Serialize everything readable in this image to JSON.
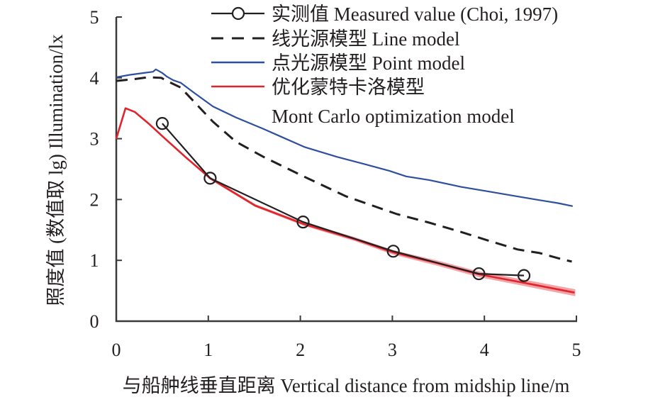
{
  "chart_data": {
    "type": "line",
    "title": "",
    "xlabel": "与船舯线垂直距离 Vertical distance from midship line/m",
    "ylabel": "照度值 (数值取 lg) Illumination/lx",
    "xlim": [
      0,
      5
    ],
    "ylim": [
      0,
      5
    ],
    "xticks": [
      "0",
      "1",
      "2",
      "3",
      "4",
      "5"
    ],
    "yticks": [
      "0",
      "1",
      "2",
      "3",
      "4",
      "5"
    ],
    "grid": false,
    "legend_position": "top-right",
    "series": [
      {
        "name": "实测值 Measured value (Choi, 1997)",
        "style": "solid-circle-markers",
        "color": "#231f20",
        "x": [
          0.5,
          1.02,
          2.03,
          3.01,
          3.94,
          4.43
        ],
        "y": [
          3.25,
          2.35,
          1.63,
          1.15,
          0.78,
          0.75
        ]
      },
      {
        "name": "线光源模型  Line model",
        "style": "dashed",
        "color": "#231f20",
        "x": [
          0.0,
          0.2,
          0.35,
          0.49,
          0.55,
          0.7,
          0.85,
          1.05,
          1.3,
          1.6,
          2.05,
          2.5,
          3.05,
          3.4,
          3.74,
          4.05,
          4.36,
          4.6,
          4.86,
          4.95
        ],
        "y": [
          3.95,
          3.98,
          4.01,
          4.0,
          3.95,
          3.84,
          3.6,
          3.28,
          2.95,
          2.7,
          2.37,
          2.05,
          1.76,
          1.62,
          1.47,
          1.32,
          1.18,
          1.12,
          1.01,
          0.98
        ]
      },
      {
        "name": "点光源模型 Point model",
        "style": "solid",
        "color": "#2e4f9e",
        "x": [
          0.0,
          0.15,
          0.3,
          0.4,
          0.43,
          0.5,
          0.55,
          0.62,
          0.7,
          0.85,
          1.05,
          1.3,
          1.6,
          2.05,
          2.4,
          2.7,
          2.97,
          3.15,
          3.4,
          3.74,
          4.05,
          4.36,
          4.6,
          4.8,
          4.96
        ],
        "y": [
          4.01,
          4.05,
          4.08,
          4.1,
          4.14,
          4.08,
          4.02,
          3.96,
          3.92,
          3.75,
          3.53,
          3.35,
          3.16,
          2.86,
          2.7,
          2.58,
          2.47,
          2.38,
          2.32,
          2.21,
          2.13,
          2.05,
          1.99,
          1.94,
          1.89
        ]
      },
      {
        "name": "优化蒙特卡洛模型 Mont Carlo optimization model",
        "style": "solid-with-band",
        "color": "#e0242b",
        "band_color": "#f4a3a6",
        "x": [
          0.0,
          0.1,
          0.2,
          0.35,
          0.53,
          0.75,
          1.02,
          1.51,
          2.03,
          2.59,
          3.01,
          3.5,
          3.94,
          4.4,
          4.98
        ],
        "y": [
          3.0,
          3.5,
          3.44,
          3.25,
          3.0,
          2.7,
          2.35,
          1.9,
          1.6,
          1.35,
          1.13,
          0.95,
          0.77,
          0.64,
          0.47
        ],
        "band_halfwidth": [
          0,
          0,
          0,
          0,
          0,
          0,
          0.01,
          0.01,
          0.015,
          0.02,
          0.025,
          0.03,
          0.035,
          0.04,
          0.045
        ]
      }
    ],
    "legend": [
      {
        "lines": [
          "实测值 Measured value (Choi, 1997)"
        ]
      },
      {
        "lines": [
          "线光源模型  Line model"
        ]
      },
      {
        "lines": [
          "点光源模型 Point model"
        ]
      },
      {
        "lines": [
          "优化蒙特卡洛模型",
          "Mont Carlo optimization model"
        ]
      }
    ]
  }
}
